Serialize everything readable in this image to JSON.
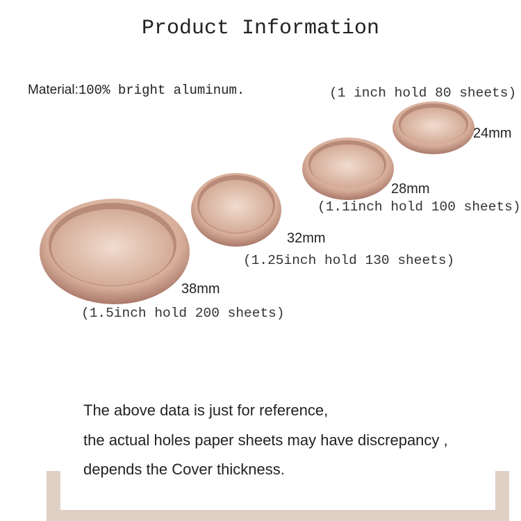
{
  "title": "Product Information",
  "material": {
    "label": "Material:",
    "value": "100% bright aluminum."
  },
  "rings": [
    {
      "size": "38mm",
      "capacity": "(1.5inch hold 200 sheets)"
    },
    {
      "size": "32mm",
      "capacity": "(1.25inch hold 130 sheets)"
    },
    {
      "size": "28mm",
      "capacity": "(1.1inch hold 100 sheets)"
    },
    {
      "size": "24mm",
      "capacity": "(1 inch hold 80 sheets)"
    }
  ],
  "note": [
    "The above data is just for reference,",
    "the actual holes paper sheets may have discrepancy ,",
    "depends the Cover thickness."
  ],
  "colors": {
    "rose_gold": "#c9a08e",
    "frame": "#dfd0c6"
  }
}
